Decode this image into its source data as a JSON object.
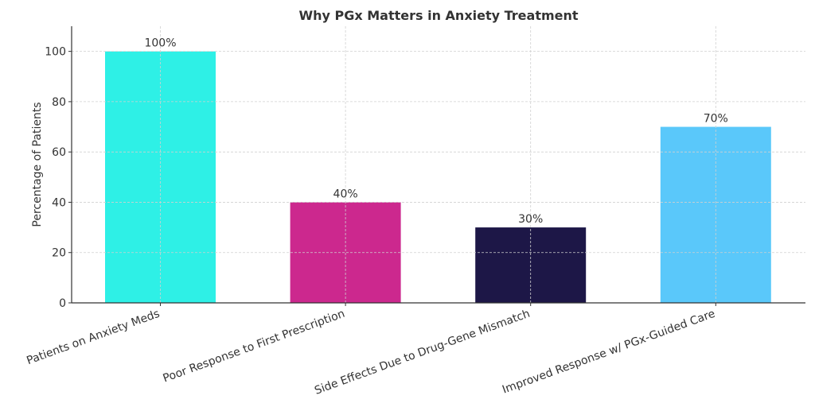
{
  "chart_data": {
    "type": "bar",
    "title": "Why PGx Matters in Anxiety Treatment",
    "xlabel": "",
    "ylabel": "Percentage of Patients",
    "categories": [
      "Patients on Anxiety Meds",
      "Poor Response to First Prescription",
      "Side Effects Due to Drug-Gene Mismatch",
      "Improved Response w/ PGx-Guided Care"
    ],
    "values": [
      100,
      40,
      30,
      70
    ],
    "data_labels": [
      "100%",
      "40%",
      "30%",
      "70%"
    ],
    "colors": [
      "#2ef0e6",
      "#cc288e",
      "#1d1747",
      "#5ac8fa"
    ],
    "ylim": [
      0,
      110
    ],
    "yticks": [
      0,
      20,
      40,
      60,
      80,
      100
    ],
    "ytick_labels": [
      "0",
      "20",
      "40",
      "60",
      "80",
      "100"
    ],
    "grid": true,
    "legend": "none"
  }
}
